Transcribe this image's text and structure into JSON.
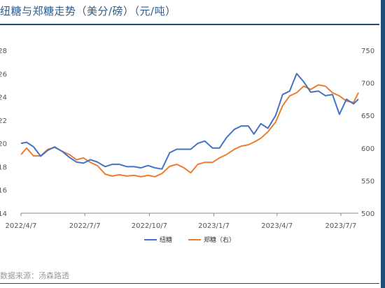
{
  "header": {
    "title": "纽糖与郑糖走势（美分/磅）（元/吨）"
  },
  "footer": {
    "source": "数据来源：汤森路透"
  },
  "colors": {
    "accent": "#1f4e79",
    "series_blue": "#4472c4",
    "series_orange": "#ed7d31"
  },
  "chart_data": {
    "type": "line",
    "title": "纽糖与郑糖走势（美分/磅）（元/吨）",
    "xlabel": "",
    "ylabel": "",
    "x_ticks": [
      "2022/4/7",
      "2022/7/7",
      "2022/10/7",
      "2023/1/7",
      "2023/4/7",
      "2023/7/7"
    ],
    "x_range": [
      "2022-04-07",
      "2023-08-01"
    ],
    "y_left": {
      "range": [
        14,
        28
      ],
      "ticks": [
        "14",
        "16",
        "18",
        "20",
        "22",
        "24",
        "26",
        "28"
      ]
    },
    "y_right": {
      "range": [
        500,
        750
      ],
      "ticks": [
        "500",
        "550",
        "600",
        "650",
        "700",
        "750"
      ]
    },
    "legend_position": "bottom",
    "grid": false,
    "series": [
      {
        "name": "纽糖",
        "axis": "left",
        "color": "#4472c4",
        "points": [
          [
            "2022-04-07",
            20.0
          ],
          [
            "2022-04-15",
            20.1
          ],
          [
            "2022-04-25",
            19.7
          ],
          [
            "2022-05-05",
            18.9
          ],
          [
            "2022-05-15",
            19.4
          ],
          [
            "2022-05-25",
            19.7
          ],
          [
            "2022-06-05",
            19.3
          ],
          [
            "2022-06-15",
            18.8
          ],
          [
            "2022-06-25",
            18.4
          ],
          [
            "2022-07-05",
            18.3
          ],
          [
            "2022-07-15",
            18.6
          ],
          [
            "2022-07-25",
            18.4
          ],
          [
            "2022-08-05",
            18.0
          ],
          [
            "2022-08-15",
            18.2
          ],
          [
            "2022-08-25",
            18.2
          ],
          [
            "2022-09-05",
            18.0
          ],
          [
            "2022-09-15",
            18.0
          ],
          [
            "2022-09-25",
            17.9
          ],
          [
            "2022-10-05",
            18.1
          ],
          [
            "2022-10-15",
            17.9
          ],
          [
            "2022-10-25",
            17.8
          ],
          [
            "2022-11-05",
            19.2
          ],
          [
            "2022-11-15",
            19.5
          ],
          [
            "2022-11-25",
            19.5
          ],
          [
            "2022-12-05",
            19.5
          ],
          [
            "2022-12-15",
            20.0
          ],
          [
            "2022-12-25",
            20.2
          ],
          [
            "2023-01-05",
            19.6
          ],
          [
            "2023-01-15",
            19.6
          ],
          [
            "2023-01-25",
            20.5
          ],
          [
            "2023-02-05",
            21.2
          ],
          [
            "2023-02-15",
            21.5
          ],
          [
            "2023-02-25",
            21.5
          ],
          [
            "2023-03-05",
            20.8
          ],
          [
            "2023-03-15",
            21.7
          ],
          [
            "2023-03-25",
            21.3
          ],
          [
            "2023-04-05",
            22.4
          ],
          [
            "2023-04-15",
            24.2
          ],
          [
            "2023-04-25",
            24.5
          ],
          [
            "2023-05-05",
            26.0
          ],
          [
            "2023-05-15",
            25.3
          ],
          [
            "2023-05-25",
            24.4
          ],
          [
            "2023-06-05",
            24.5
          ],
          [
            "2023-06-15",
            24.1
          ],
          [
            "2023-06-25",
            24.2
          ],
          [
            "2023-07-05",
            22.5
          ],
          [
            "2023-07-15",
            23.8
          ],
          [
            "2023-07-25",
            23.4
          ],
          [
            "2023-08-01",
            23.8
          ]
        ]
      },
      {
        "name": "郑糖（右）",
        "axis": "right",
        "color": "#ed7d31",
        "points": [
          [
            "2022-04-07",
            590
          ],
          [
            "2022-04-15",
            600
          ],
          [
            "2022-04-25",
            588
          ],
          [
            "2022-05-05",
            588
          ],
          [
            "2022-05-15",
            598
          ],
          [
            "2022-05-25",
            601
          ],
          [
            "2022-06-05",
            595
          ],
          [
            "2022-06-15",
            590
          ],
          [
            "2022-06-25",
            582
          ],
          [
            "2022-07-05",
            585
          ],
          [
            "2022-07-15",
            578
          ],
          [
            "2022-07-25",
            573
          ],
          [
            "2022-08-05",
            560
          ],
          [
            "2022-08-15",
            557
          ],
          [
            "2022-08-25",
            559
          ],
          [
            "2022-09-05",
            557
          ],
          [
            "2022-09-15",
            558
          ],
          [
            "2022-09-25",
            556
          ],
          [
            "2022-10-05",
            558
          ],
          [
            "2022-10-15",
            556
          ],
          [
            "2022-10-25",
            561
          ],
          [
            "2022-11-05",
            572
          ],
          [
            "2022-11-15",
            575
          ],
          [
            "2022-11-25",
            570
          ],
          [
            "2022-12-05",
            562
          ],
          [
            "2022-12-15",
            575
          ],
          [
            "2022-12-25",
            578
          ],
          [
            "2023-01-05",
            578
          ],
          [
            "2023-01-15",
            585
          ],
          [
            "2023-01-25",
            590
          ],
          [
            "2023-02-05",
            598
          ],
          [
            "2023-02-15",
            603
          ],
          [
            "2023-02-25",
            605
          ],
          [
            "2023-03-05",
            609
          ],
          [
            "2023-03-15",
            615
          ],
          [
            "2023-03-25",
            625
          ],
          [
            "2023-04-05",
            640
          ],
          [
            "2023-04-15",
            665
          ],
          [
            "2023-04-25",
            680
          ],
          [
            "2023-05-05",
            685
          ],
          [
            "2023-05-15",
            695
          ],
          [
            "2023-05-25",
            690
          ],
          [
            "2023-06-05",
            697
          ],
          [
            "2023-06-15",
            695
          ],
          [
            "2023-06-25",
            685
          ],
          [
            "2023-07-05",
            680
          ],
          [
            "2023-07-15",
            672
          ],
          [
            "2023-07-25",
            670
          ],
          [
            "2023-08-01",
            685
          ]
        ]
      }
    ]
  }
}
